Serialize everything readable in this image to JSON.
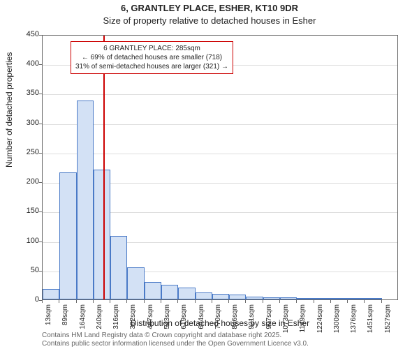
{
  "title_main": "6, GRANTLEY PLACE, ESHER, KT10 9DR",
  "title_sub": "Size of property relative to detached houses in Esher",
  "ylabel": "Number of detached properties",
  "xlabel": "Distribution of detached houses by size in Esher",
  "footer1": "Contains HM Land Registry data © Crown copyright and database right 2025.",
  "footer2": "Contains public sector information licensed under the Open Government Licence v3.0.",
  "chart": {
    "type": "histogram",
    "ylim": [
      0,
      450
    ],
    "ytick_step": 50,
    "yticks": [
      0,
      50,
      100,
      150,
      200,
      250,
      300,
      350,
      400,
      450
    ],
    "xtick_labels": [
      "13sqm",
      "89sqm",
      "164sqm",
      "240sqm",
      "316sqm",
      "392sqm",
      "467sqm",
      "543sqm",
      "619sqm",
      "694sqm",
      "770sqm",
      "846sqm",
      "921sqm",
      "997sqm",
      "1073sqm",
      "1149sqm",
      "1224sqm",
      "1300sqm",
      "1376sqm",
      "1451sqm",
      "1527sqm"
    ],
    "bar_values": [
      18,
      215,
      337,
      220,
      108,
      55,
      30,
      25,
      20,
      12,
      10,
      8,
      5,
      4,
      3,
      2,
      2,
      1,
      1,
      1
    ],
    "bar_fill": "#d3e1f5",
    "bar_border": "#4a7ac7",
    "background_color": "#ffffff",
    "grid_color": "#dddddd",
    "axis_color": "#666666",
    "title_fontsize": 13,
    "label_fontsize": 12,
    "tick_fontsize": 11,
    "xtick_fontsize": 10
  },
  "marker": {
    "position_sqm": 285,
    "line_color": "#cc0000",
    "box_border": "#cc0000",
    "line1": "6 GRANTLEY PLACE: 285sqm",
    "line2": "← 69% of detached houses are smaller (718)",
    "line3": "31% of semi-detached houses are larger (321) →"
  }
}
